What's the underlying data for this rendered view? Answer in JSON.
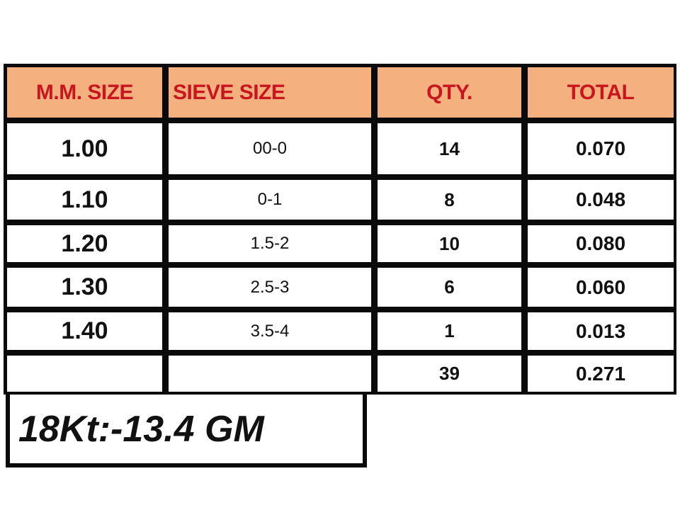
{
  "table": {
    "headers": [
      "M.M. SIZE",
      "SIEVE SIZE",
      "QTY.",
      "TOTAL"
    ],
    "rows": [
      [
        "1.00",
        "00-0",
        "14",
        "0.070"
      ],
      [
        "1.10",
        "0-1",
        "8",
        "0.048"
      ],
      [
        "1.20",
        "1.5-2",
        "10",
        "0.080"
      ],
      [
        "1.30",
        "2.5-3",
        "6",
        "0.060"
      ],
      [
        "1.40",
        "3.5-4",
        "1",
        "0.013"
      ],
      [
        "",
        "",
        "39",
        "0.271"
      ]
    ],
    "header_bg": "#f4b07f",
    "header_text_color": "#c8161e"
  },
  "note": {
    "text": "18Kt:-13.4 GM"
  }
}
